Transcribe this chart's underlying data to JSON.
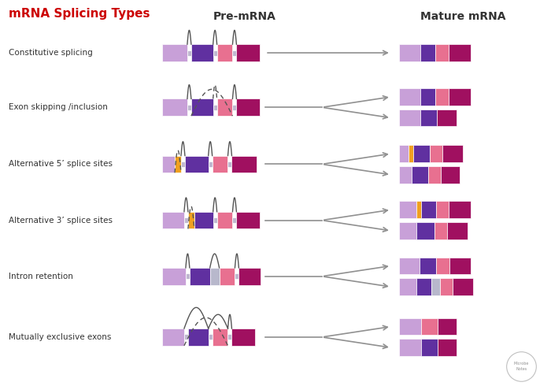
{
  "title": "mRNA Splicing Types",
  "pre_mrna_label": "Pre-mRNA",
  "mature_mrna_label": "Mature mRNA",
  "background_color": "#ffffff",
  "title_color": "#cc0000",
  "label_color": "#333333",
  "rows": [
    {
      "label": "Constitutive splicing"
    },
    {
      "label": "Exon skipping /inclusion"
    },
    {
      "label": "Alternative 5’ splice sites"
    },
    {
      "label": "Alternative 3’ splice sites"
    },
    {
      "label": "Intron retention"
    },
    {
      "label": "Mutually exclusive exons"
    }
  ],
  "colors": {
    "lavender": "#c8a0d8",
    "purple": "#6030a0",
    "pink": "#e87090",
    "magenta": "#a01060",
    "orange": "#f0a020",
    "gray": "#b8b8cc",
    "intron": "#c0b8d0",
    "arrow_color": "#808080"
  }
}
